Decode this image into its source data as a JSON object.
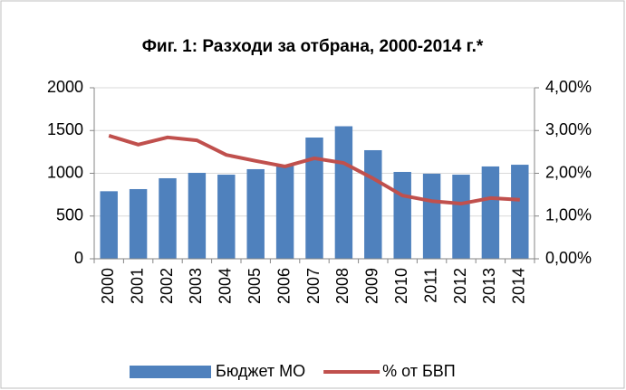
{
  "chart_data": {
    "type": "bar_line",
    "title": "Фиг. 1: Разходи за отбрана, 2000-2014 г.*",
    "categories": [
      "2000",
      "2001",
      "2002",
      "2003",
      "2004",
      "2005",
      "2006",
      "2007",
      "2008",
      "2009",
      "2010",
      "2011",
      "2012",
      "2013",
      "2014"
    ],
    "series": [
      {
        "name": "Бюджет МО",
        "type": "bar",
        "color": "#4f81bd",
        "values": [
          790,
          815,
          942,
          1005,
          984,
          1048,
          1090,
          1418,
          1550,
          1270,
          1016,
          995,
          984,
          1080,
          1100
        ]
      },
      {
        "name": "% от БВП",
        "type": "line",
        "axis": "y2",
        "color": "#c0504d",
        "values": [
          2.88,
          2.67,
          2.84,
          2.77,
          2.43,
          2.29,
          2.16,
          2.35,
          2.24,
          1.88,
          1.48,
          1.35,
          1.29,
          1.42,
          1.38
        ]
      }
    ],
    "ylim": [
      0,
      2000
    ],
    "yticks": [
      0,
      500,
      1000,
      1500,
      2000
    ],
    "y2lim": [
      0,
      4
    ],
    "y2ticks": [
      {
        "value": 0,
        "label": "0,00%"
      },
      {
        "value": 1,
        "label": "1,00%"
      },
      {
        "value": 2,
        "label": "2,00%"
      },
      {
        "value": 3,
        "label": "3,00%"
      },
      {
        "value": 4,
        "label": "4,00%"
      }
    ],
    "grid": true,
    "legend": "bottom"
  }
}
